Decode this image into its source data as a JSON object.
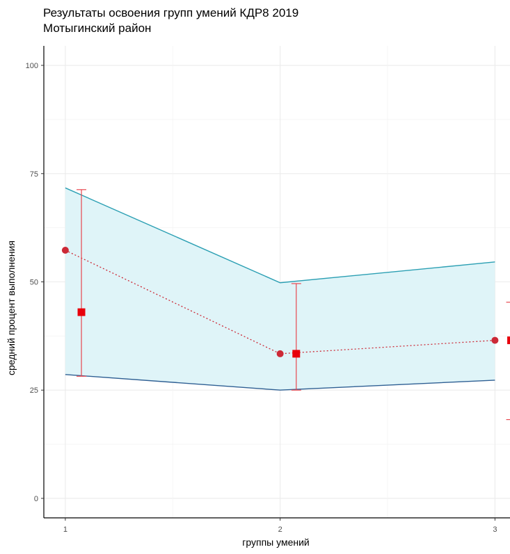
{
  "chart_data": {
    "type": "line",
    "title": "Результаты освоения групп умений КДР8 2019",
    "subtitle": "Мотыгинский район",
    "xlabel": "группы умений",
    "ylabel": "средний процент выполнения",
    "x": [
      1,
      2,
      3
    ],
    "x_ticks": [
      "1",
      "2",
      "3"
    ],
    "y_ticks": [
      "0",
      "25",
      "50",
      "75",
      "100"
    ],
    "ylim": [
      -4.5,
      104.5
    ],
    "xlim": [
      0.9,
      3.07
    ],
    "grid": true,
    "band": {
      "upper": [
        71.7,
        49.8,
        54.6
      ],
      "lower": [
        28.6,
        25.0,
        27.3
      ],
      "fill": "#dff4f8",
      "upper_color": "#2b9fb3",
      "lower_color": "#2e5f93"
    },
    "dotted_series": {
      "values": [
        57.3,
        33.4,
        36.5
      ],
      "color": "#cc2936"
    },
    "square_series": {
      "values": [
        43.0,
        33.4,
        36.5
      ],
      "x_offset": 0.075,
      "color": "#e8000b",
      "error_low": [
        28.2,
        25.0,
        18.2
      ],
      "error_high": [
        71.3,
        49.6,
        45.3
      ],
      "error_color": "#e8474f"
    }
  }
}
